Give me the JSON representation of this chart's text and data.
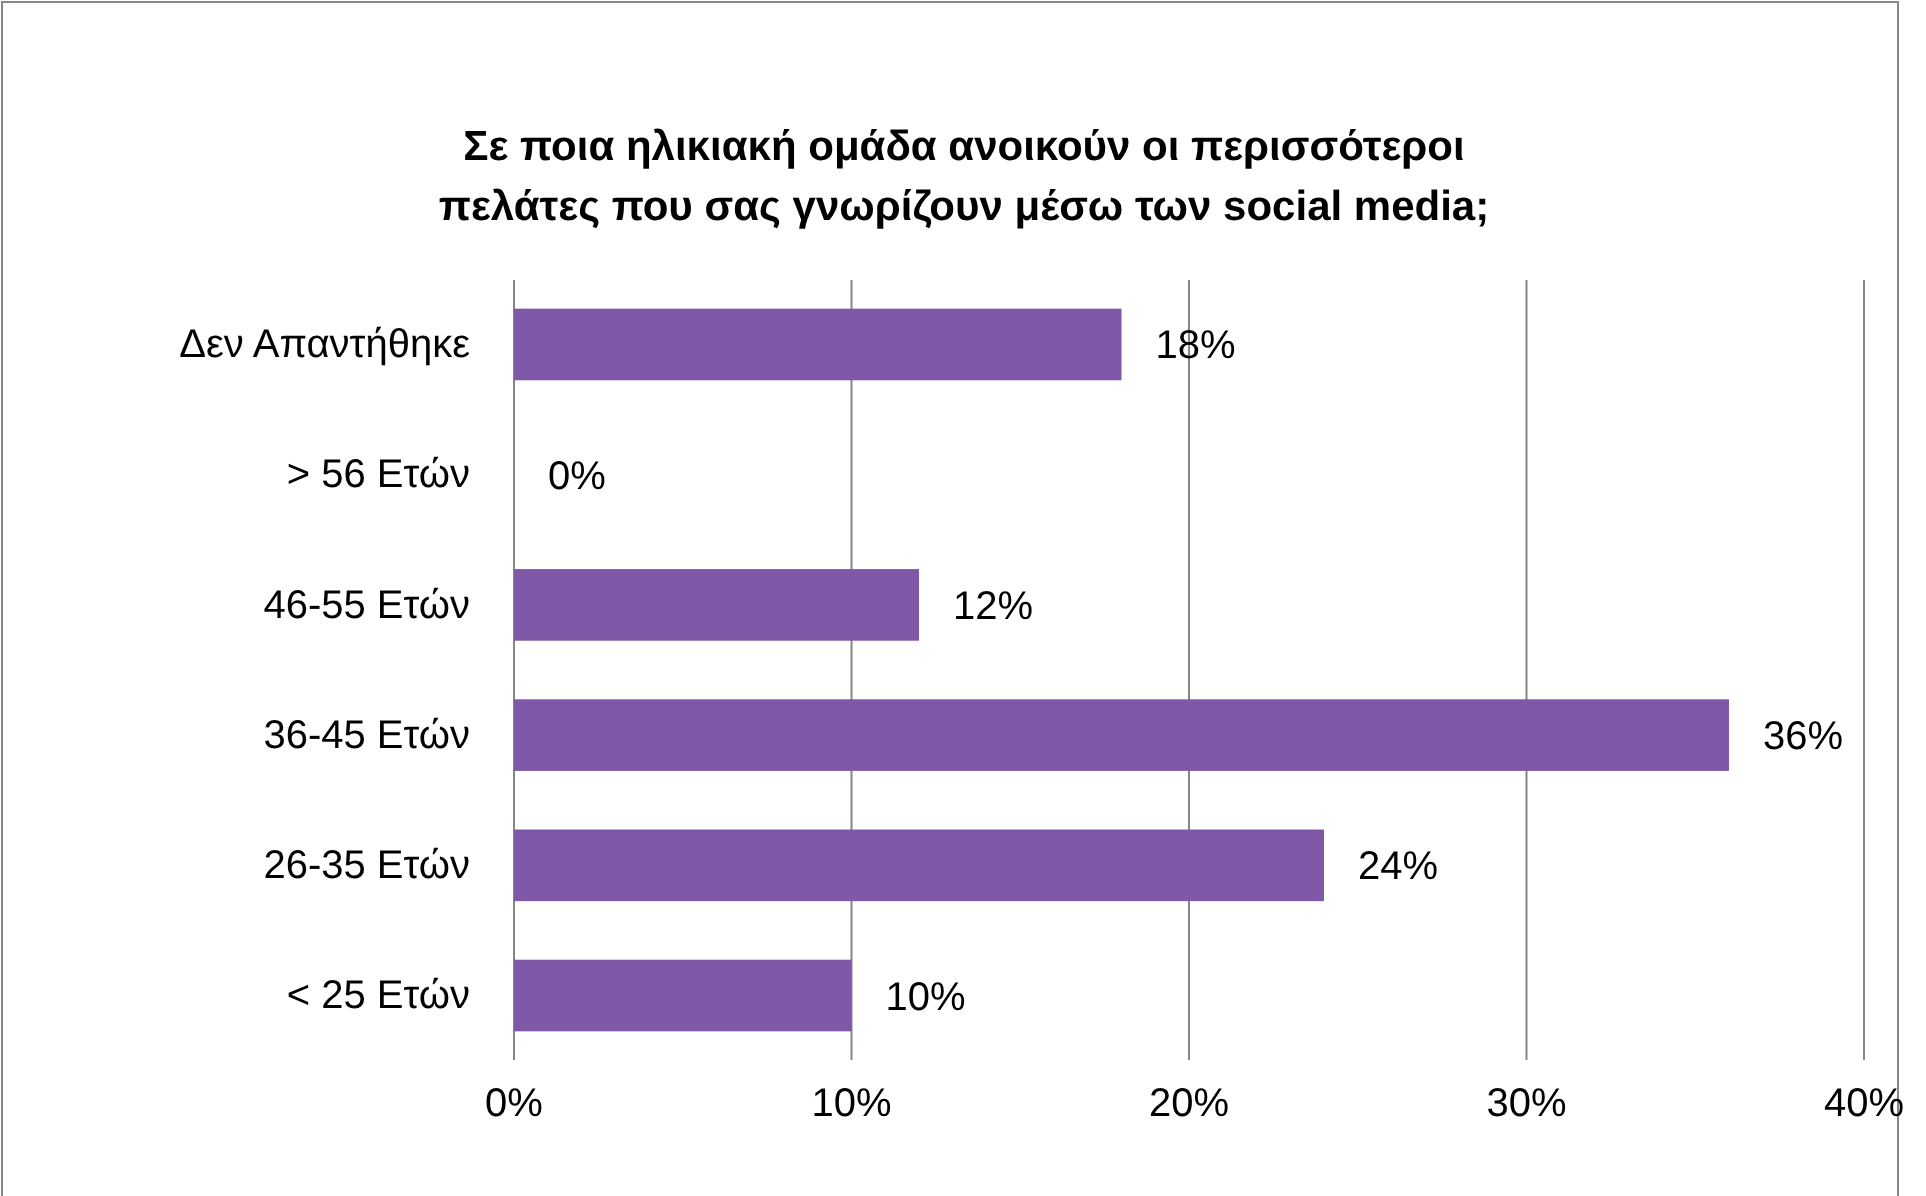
{
  "chart_data": {
    "type": "bar",
    "orientation": "horizontal",
    "title": "Σε ποια ηλικιακή ομάδα ανοικούν οι περισσότεροι πελάτες που σας γνωρίζουν μέσω των social media;",
    "categories": [
      "Δεν Απαντήθηκε",
      "> 56 Ετών",
      "46-55 Ετών",
      "36-45 Ετών",
      "26-35 Ετών",
      "< 25 Ετών"
    ],
    "values": [
      18,
      0,
      12,
      36,
      24,
      10
    ],
    "value_labels": [
      "18%",
      "0%",
      "12%",
      "36%",
      "24%",
      "10%"
    ],
    "color": "#7f58a8",
    "xlim": [
      0,
      40
    ],
    "xticks": [
      {
        "value": 0,
        "label": "0%"
      },
      {
        "value": 10,
        "label": "10%"
      },
      {
        "value": 20,
        "label": "20%"
      },
      {
        "value": 30,
        "label": "30%"
      },
      {
        "value": 40,
        "label": "40%"
      }
    ],
    "grid": "x"
  }
}
